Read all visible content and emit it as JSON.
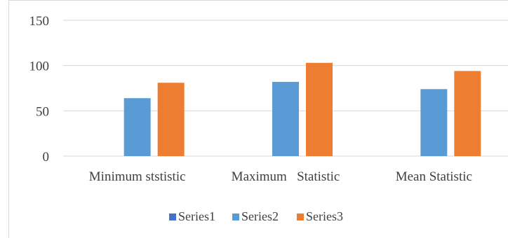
{
  "chart_data": {
    "type": "bar",
    "categories": [
      "Minimum ststistic",
      "Maximum   Statistic",
      "Mean Statistic"
    ],
    "series": [
      {
        "name": "Series1",
        "values": [
          0,
          0,
          0
        ],
        "color": "#4472c4"
      },
      {
        "name": "Series2",
        "values": [
          64,
          82,
          74
        ],
        "color": "#5b9bd5"
      },
      {
        "name": "Series3",
        "values": [
          81,
          103,
          94
        ],
        "color": "#ed7d31"
      }
    ],
    "title": "",
    "xlabel": "",
    "ylabel": "",
    "ylim": [
      0,
      150
    ],
    "yticks": [
      0,
      50,
      100,
      150
    ],
    "grid": true,
    "legend": "bottom"
  }
}
